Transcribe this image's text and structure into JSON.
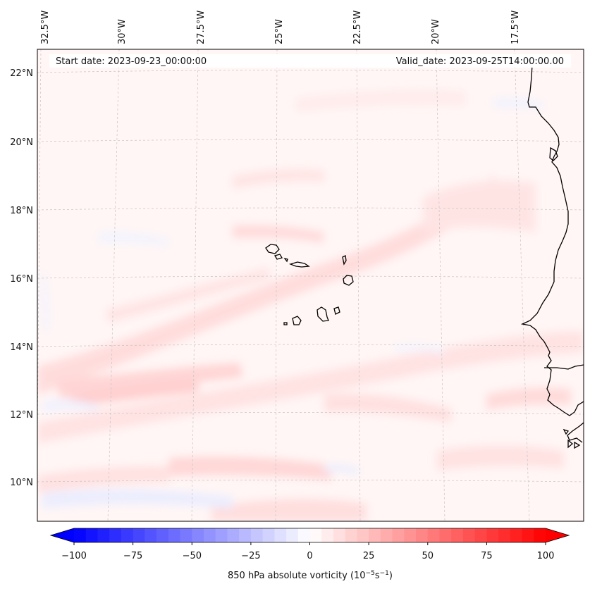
{
  "map": {
    "start_date_label": "Start date: 2023-09-23_00:00:00",
    "valid_date_label": "Valid_date: 2023-09-25T14:00:00.00",
    "lon_ticks": [
      "32.5°W",
      "30°W",
      "27.5°W",
      "25°W",
      "22.5°W",
      "20°W",
      "17.5°W"
    ],
    "lat_ticks": [
      "22°N",
      "20°N",
      "18°N",
      "16°N",
      "14°N",
      "12°N",
      "10°N"
    ],
    "coast_color": "#000000",
    "gridline_color": "#bbbbbb"
  },
  "colorbar": {
    "label_main": "850 hPa absolute vorticity (10",
    "label_exp1": "−5",
    "label_mid": "s",
    "label_exp2": "−1",
    "label_end": ")",
    "ticks": [
      "−100",
      "−75",
      "−50",
      "−25",
      "0",
      "25",
      "50",
      "75",
      "100"
    ],
    "vmin": -100,
    "vmax": 100,
    "step": 5,
    "low_color": "#0000ff",
    "mid_color": "#ffffff",
    "high_color": "#ff0000"
  }
}
